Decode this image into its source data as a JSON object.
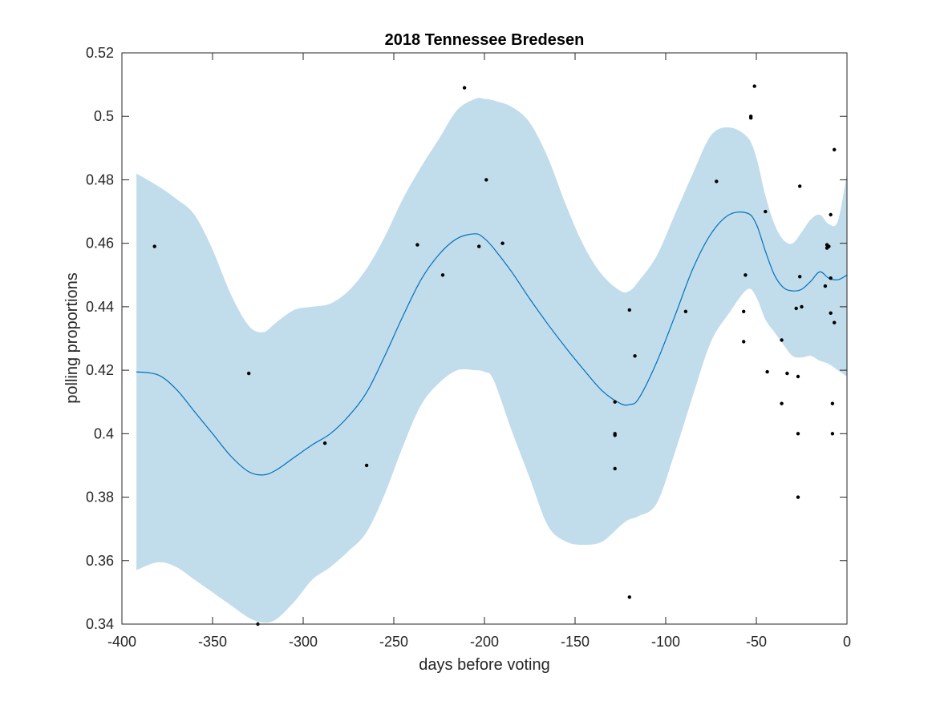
{
  "chart_data": {
    "type": "line",
    "title": "2018 Tennessee Bredesen",
    "xlabel": "days before voting",
    "ylabel": "polling proportions",
    "xlim": [
      -400,
      0
    ],
    "ylim": [
      0.34,
      0.52
    ],
    "x_ticks": [
      -400,
      -350,
      -300,
      -250,
      -200,
      -150,
      -100,
      -50,
      0
    ],
    "y_ticks": [
      0.34,
      0.36,
      0.38,
      0.4,
      0.42,
      0.44,
      0.46,
      0.48,
      0.5,
      0.52
    ],
    "x_tick_labels": [
      "-400",
      "-350",
      "-300",
      "-250",
      "-200",
      "-150",
      "-100",
      "-50",
      "0"
    ],
    "y_tick_labels": [
      "0.34",
      "0.36",
      "0.38",
      "0.4",
      "0.42",
      "0.44",
      "0.46",
      "0.48",
      "0.5",
      "0.52"
    ],
    "grid": false,
    "legend": "none",
    "colors": {
      "line": "#0072bd",
      "band": "#c1dceb",
      "points": "#000000",
      "axis": "#262626"
    },
    "series": [
      {
        "type": "line",
        "x": [
          -392,
          -380,
          -370,
          -360,
          -350,
          -340,
          -330,
          -322,
          -315,
          -305,
          -295,
          -285,
          -275,
          -265,
          -255,
          -245,
          -235,
          -225,
          -215,
          -205,
          -200,
          -195,
          -185,
          -175,
          -165,
          -155,
          -145,
          -135,
          -125,
          -120,
          -115,
          -105,
          -95,
          -85,
          -75,
          -65,
          -55,
          -50,
          -45,
          -40,
          -35,
          -30,
          -25,
          -20,
          -15,
          -10,
          -5,
          0
        ],
        "y": [
          0.4195,
          0.4185,
          0.414,
          0.407,
          0.4,
          0.393,
          0.388,
          0.387,
          0.3885,
          0.3925,
          0.3965,
          0.4,
          0.4055,
          0.413,
          0.4245,
          0.437,
          0.4485,
          0.4565,
          0.4615,
          0.463,
          0.4615,
          0.4585,
          0.451,
          0.4425,
          0.4345,
          0.427,
          0.42,
          0.4135,
          0.4095,
          0.4092,
          0.411,
          0.4225,
          0.437,
          0.452,
          0.463,
          0.469,
          0.4695,
          0.466,
          0.4575,
          0.45,
          0.446,
          0.445,
          0.4455,
          0.448,
          0.451,
          0.449,
          0.4485,
          0.45
        ]
      },
      {
        "type": "band",
        "x": [
          -392,
          -380,
          -370,
          -360,
          -350,
          -340,
          -330,
          -322,
          -315,
          -305,
          -295,
          -285,
          -275,
          -265,
          -255,
          -245,
          -235,
          -225,
          -215,
          -205,
          -200,
          -195,
          -185,
          -175,
          -165,
          -155,
          -145,
          -135,
          -125,
          -120,
          -115,
          -105,
          -95,
          -85,
          -75,
          -65,
          -55,
          -50,
          -45,
          -40,
          -35,
          -30,
          -25,
          -20,
          -15,
          -10,
          -5,
          0
        ],
        "upper": [
          0.482,
          0.478,
          0.474,
          0.469,
          0.458,
          0.444,
          0.434,
          0.432,
          0.435,
          0.439,
          0.44,
          0.441,
          0.445,
          0.452,
          0.462,
          0.474,
          0.484,
          0.493,
          0.502,
          0.5055,
          0.5055,
          0.505,
          0.503,
          0.498,
          0.487,
          0.472,
          0.459,
          0.45,
          0.445,
          0.445,
          0.448,
          0.456,
          0.469,
          0.482,
          0.494,
          0.4965,
          0.4935,
          0.487,
          0.475,
          0.466,
          0.461,
          0.46,
          0.4635,
          0.4675,
          0.469,
          0.466,
          0.467,
          0.482
        ],
        "lower": [
          0.357,
          0.3595,
          0.358,
          0.354,
          0.35,
          0.346,
          0.342,
          0.3405,
          0.3415,
          0.347,
          0.354,
          0.358,
          0.363,
          0.369,
          0.381,
          0.396,
          0.409,
          0.416,
          0.42,
          0.42,
          0.4195,
          0.417,
          0.401,
          0.386,
          0.371,
          0.366,
          0.365,
          0.366,
          0.371,
          0.373,
          0.374,
          0.378,
          0.394,
          0.412,
          0.429,
          0.438,
          0.4455,
          0.443,
          0.436,
          0.432,
          0.428,
          0.4245,
          0.424,
          0.4245,
          0.423,
          0.422,
          0.42,
          0.418
        ]
      },
      {
        "type": "scatter",
        "x": [
          -382,
          -330,
          -325,
          -288,
          -265,
          -237,
          -223,
          -211,
          -203,
          -199,
          -190,
          -128,
          -128,
          -128,
          -128,
          -120,
          -120,
          -117,
          -89,
          -72,
          -57,
          -57,
          -56,
          -53,
          -53,
          -51,
          -45,
          -44,
          -36,
          -36,
          -33,
          -28,
          -27,
          -27,
          -27,
          -26,
          -26,
          -25,
          -12,
          -11,
          -11,
          -10,
          -9,
          -9,
          -9,
          -8,
          -8,
          -7,
          -7
        ],
        "y": [
          0.459,
          0.419,
          0.34,
          0.397,
          0.39,
          0.4595,
          0.45,
          0.509,
          0.459,
          0.48,
          0.46,
          0.41,
          0.4,
          0.3995,
          0.389,
          0.439,
          0.3485,
          0.4245,
          0.4385,
          0.4795,
          0.4385,
          0.429,
          0.45,
          0.5,
          0.4995,
          0.5095,
          0.47,
          0.4195,
          0.4295,
          0.4095,
          0.419,
          0.4395,
          0.418,
          0.4,
          0.38,
          0.4495,
          0.478,
          0.44,
          0.4465,
          0.4595,
          0.4585,
          0.459,
          0.469,
          0.449,
          0.438,
          0.4095,
          0.4,
          0.435,
          0.4895
        ]
      }
    ]
  }
}
